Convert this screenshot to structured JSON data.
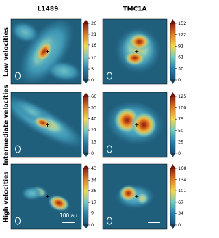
{
  "column_titles": [
    "L1489",
    "TMC1A"
  ],
  "row_titles": [
    "Low velocities",
    "Intermediate velocities",
    "High velocities"
  ],
  "scale_bar": "100 au",
  "chart_data": [
    {
      "type": "heatmap",
      "zlim": [
        0,
        26
      ],
      "zticks": [
        0,
        5,
        10,
        16,
        21,
        26
      ]
    },
    {
      "type": "heatmap",
      "zlim": [
        0,
        152
      ],
      "zticks": [
        0,
        30,
        61,
        91,
        122,
        152
      ]
    },
    {
      "type": "heatmap",
      "zlim": [
        0,
        66
      ],
      "zticks": [
        0,
        13,
        27,
        40,
        53,
        66
      ]
    },
    {
      "type": "heatmap",
      "zlim": [
        0,
        125
      ],
      "zticks": [
        0,
        25,
        50,
        75,
        100,
        125
      ]
    },
    {
      "type": "heatmap",
      "zlim": [
        0,
        43
      ],
      "zticks": [
        0,
        9,
        17,
        26,
        34,
        43
      ]
    },
    {
      "type": "heatmap",
      "zlim": [
        0,
        168
      ],
      "zticks": [
        0,
        34,
        67,
        101,
        134,
        168
      ]
    }
  ]
}
